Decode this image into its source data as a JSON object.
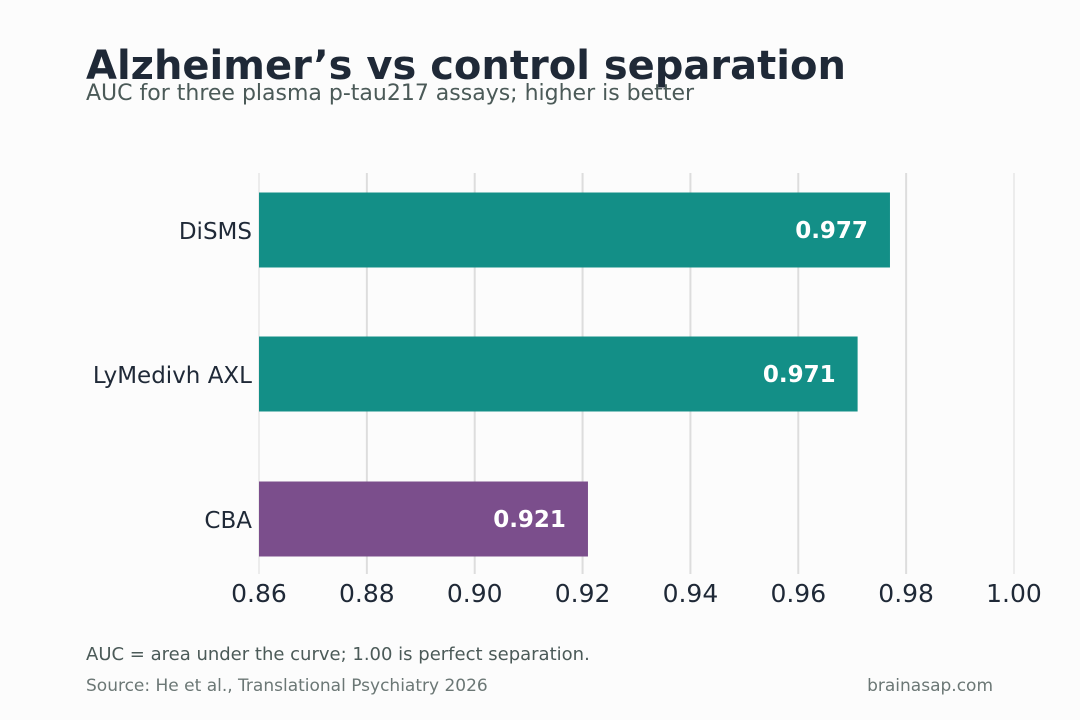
{
  "header": {
    "title": "Alzheimer’s vs control separation",
    "subtitle": "AUC for three plasma p-tau217 assays; higher is better"
  },
  "footer": {
    "note": "AUC = area under the curve; 1.00 is perfect separation.",
    "source": "Source: He et al., Translational Psychiatry 2026",
    "brand": "brainasap.com"
  },
  "chart_data": {
    "type": "bar",
    "orientation": "horizontal",
    "title": "Alzheimer’s vs control separation",
    "subtitle": "AUC for three plasma p-tau217 assays; higher is better",
    "xlabel": "",
    "ylabel": "",
    "xlim": [
      0.86,
      1.0
    ],
    "x_ticks": [
      "0.86",
      "0.88",
      "0.90",
      "0.92",
      "0.94",
      "0.96",
      "0.98",
      "1.00"
    ],
    "x_tick_values": [
      0.86,
      0.88,
      0.9,
      0.92,
      0.94,
      0.96,
      0.98,
      1.0
    ],
    "grid": "vertical",
    "legend": "none",
    "categories": [
      "DiSMS",
      "LyMedivh AXL",
      "CBA"
    ],
    "values": [
      0.977,
      0.971,
      0.921
    ],
    "value_labels": [
      "0.977",
      "0.971",
      "0.921"
    ],
    "colors": [
      "#138f87",
      "#138f87",
      "#7b4e8c"
    ]
  },
  "colors": {
    "background": "#fcfcfc",
    "grid": "#dddddd",
    "text": "#1f2937",
    "muted": "#4b5a58",
    "bar_label": "#ffffff"
  }
}
